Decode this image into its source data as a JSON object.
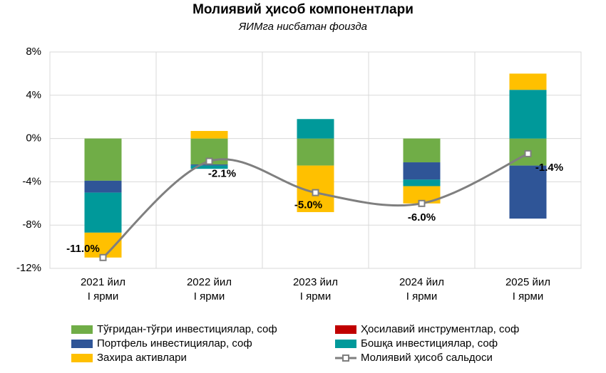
{
  "chart_data": {
    "type": "bar",
    "title": "Молиявий ҳисоб компонентлари",
    "subtitle": "ЯИМга нисбатан фоизда",
    "categories": [
      [
        "2021 йил",
        "I ярми"
      ],
      [
        "2022 йил",
        "I ярми"
      ],
      [
        "2023 йил",
        "I ярми"
      ],
      [
        "2024 йил",
        "I ярми"
      ],
      [
        "2025 йил",
        "I ярми"
      ]
    ],
    "series": [
      {
        "name": "Тўғридан-тўғри инвестициялар, соф",
        "color": "#70ad47",
        "values": [
          -3.9,
          -2.4,
          -2.5,
          -2.2,
          -2.5
        ]
      },
      {
        "name": "Ҳосилавий инструментлар, соф",
        "color": "#c00000",
        "values": [
          0,
          0,
          0,
          0,
          0
        ]
      },
      {
        "name": "Портфель инвестициялар, соф",
        "color": "#2f5597",
        "values": [
          -1.1,
          -0.1,
          0,
          -1.6,
          -4.9
        ]
      },
      {
        "name": "Бошқа инвестициялар, соф",
        "color": "#00999a",
        "values": [
          -3.7,
          -0.3,
          1.8,
          -0.6,
          4.5
        ]
      },
      {
        "name": "Захира активлари",
        "color": "#ffc000",
        "values": [
          -2.3,
          0.7,
          -4.3,
          -1.6,
          1.5
        ]
      },
      {
        "name": "Молиявий ҳисоб сальдоси",
        "type": "line",
        "color": "#7f7f7f",
        "values": [
          -11.0,
          -2.1,
          -5.0,
          -6.0,
          -1.4
        ],
        "value_labels": [
          "-11.0%",
          "-2.1%",
          "-5.0%",
          "-6.0%",
          "-1.4%"
        ]
      }
    ],
    "ylim": [
      -12,
      8
    ],
    "yticks": [
      {
        "value": -12,
        "label": "-12%"
      },
      {
        "value": -8,
        "label": "-8%"
      },
      {
        "value": -4,
        "label": "-4%"
      },
      {
        "value": 0,
        "label": "0%"
      },
      {
        "value": 4,
        "label": "4%"
      },
      {
        "value": 8,
        "label": "8%"
      }
    ],
    "grid": true
  }
}
